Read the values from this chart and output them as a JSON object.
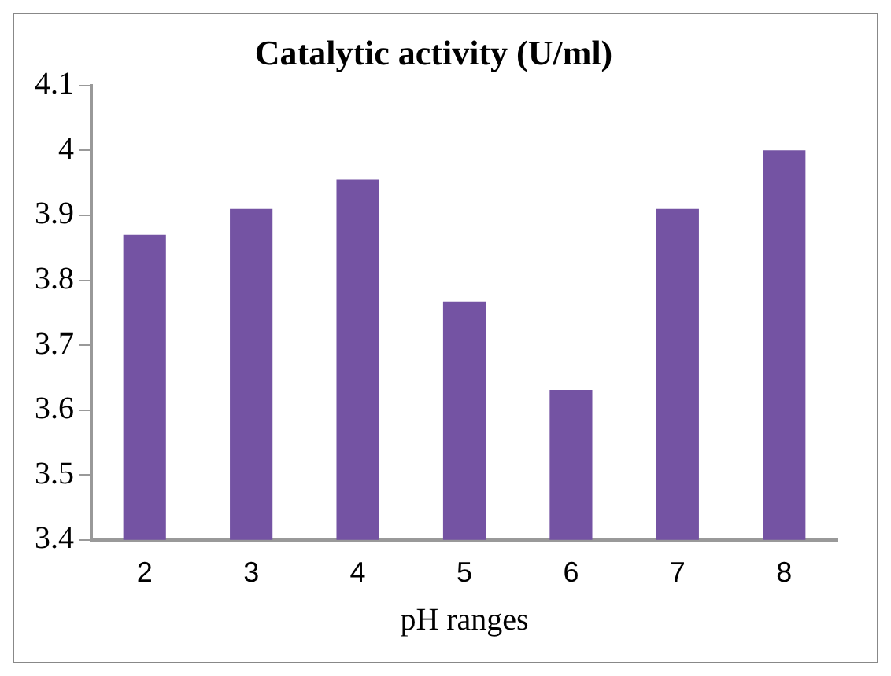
{
  "chart_data": {
    "type": "bar",
    "title": "Catalytic activity (U/ml)",
    "xlabel": "pH ranges",
    "categories": [
      "2",
      "3",
      "4",
      "5",
      "6",
      "7",
      "8"
    ],
    "values": [
      3.87,
      3.91,
      3.955,
      3.767,
      3.631,
      3.91,
      4.0
    ],
    "color": "#7453a3",
    "ylim": [
      3.4,
      4.1
    ],
    "yticks": [
      3.4,
      3.5,
      3.6,
      3.7,
      3.8,
      3.9,
      4,
      4.1
    ],
    "grid": false,
    "legend": false
  }
}
